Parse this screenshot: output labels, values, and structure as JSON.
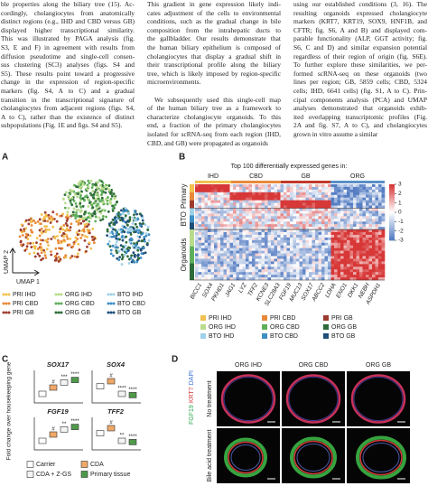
{
  "body_text": {
    "columns": [
      {
        "paragraphs": [
          [
            "ble properties along the biliary tree (15). Ac-",
            "cordingly, cholangiocytes from anatomically",
            "distinct regions (e.g., IHD and CBD versus GB)",
            "displayed higher transcriptional similarity.",
            "This was illustrated by PAGA analysis (fig.",
            "S3, E and F) in agreement with results from",
            "diffusion pseudotime and single-cell consen-",
            "sus clustering (SC3) analyses (figs. S4 and",
            "S5). These results point toward a progressive",
            "change in the expression of region-specific",
            "markers (fig. S4, A to C) and a gradual",
            "transition in the transcriptional signature of",
            "cholangiocytes from adjacent regions (figs. S4,",
            "A to C), rather than the existence of distinct",
            "subpopulations (Fig. 1E and figs. S4 and S5)."
          ]
        ]
      },
      {
        "paragraphs": [
          [
            "This gradient in gene expression likely indi-",
            "cates adjustment of the cells to environmental",
            "conditions, such as the gradual change in bile",
            "composition from the intrahepatic ducts to",
            "the gallbladder. Our results demonstrate that",
            "the human biliary epithelium is composed of",
            "cholangiocytes that display a gradual shift in",
            "their transcriptional profile along the biliary",
            "tree, which is likely imposed by region-specific",
            "microenvironments."
          ],
          [
            "We subsequently used this single-cell map",
            "of the human biliary tree as a framework to",
            "characterize cholangiocyte organoids. To this",
            "end, a fraction of the primary cholangiocytes",
            "isolated for scRNA-seq from each region (IHD,",
            "CBD, and GB) were propagated as organoids"
          ]
        ]
      },
      {
        "paragraphs": [
          [
            "using our established conditions (3, 16). The",
            "resulting organoids expressed cholangiocyte",
            "markers (KRT7, KRT19, SOX9, HNF1B, and",
            "CFTR; fig. S6, A and B) and displayed com-",
            "parable functionality (ALP, GGT activity; fig.",
            "S6, C and D) and similar expansion potential",
            "regardless of their region of origin (fig. S6E).",
            "To further explore these similarities, we per-",
            "formed scRNA-seq on these organoids (two",
            "lines per region; GB, 5859 cells; CBD, 5324",
            "cells; IHD, 6641 cells) (fig. S1, A to C). Prin-",
            "cipal components analysis (PCA) and UMAP",
            "analyses demonstrated that organoids exhib-",
            "ited overlapping transcriptomic profiles (Fig.",
            "2A and fig. S7, A to C), and cholangiocytes",
            "grown in vitro assume a similar"
          ]
        ]
      }
    ]
  },
  "figure": {
    "samples": [
      {
        "name": "PRI IHD",
        "color": "#f2c14e"
      },
      {
        "name": "PRI CBD",
        "color": "#e8893a"
      },
      {
        "name": "PRI GB",
        "color": "#9c3b2e"
      },
      {
        "name": "ORG IHD",
        "color": "#b9dc8c"
      },
      {
        "name": "ORG CBD",
        "color": "#5fae5a"
      },
      {
        "name": "ORG GB",
        "color": "#2e6b3a"
      },
      {
        "name": "BTO IHD",
        "color": "#9fd1e8"
      },
      {
        "name": "BTO CBD",
        "color": "#3e8fc4"
      },
      {
        "name": "BTO GB",
        "color": "#1f4e79"
      }
    ],
    "panel_a": {
      "label": "A",
      "x_axis": "UMAP 1",
      "y_axis": "UMAP 2"
    },
    "panel_b": {
      "label": "B",
      "header": "Top 100 differentially expressed genes in:",
      "groups": [
        {
          "name": "IHD",
          "color": "#f2c14e"
        },
        {
          "name": "CBD",
          "color": "#e8893a"
        },
        {
          "name": "GB",
          "color": "#c0392b"
        },
        {
          "name": "ORG",
          "color": "#5b8fc9"
        }
      ],
      "rows": [
        "Primary",
        "BTO",
        "Organoids"
      ],
      "colorbar_ticks": [
        3,
        2,
        1,
        0,
        -1,
        -2,
        -3
      ],
      "genes": [
        "BICC1",
        "SOX4",
        "PKHD1",
        "JAG1",
        "LYZ",
        "TFF2",
        "KCNE3",
        "SLC28A3",
        "FGF19",
        "MUC13",
        "SOX17",
        "ABCC2",
        "LDHA",
        "ENO1",
        "DKK1",
        "NEBH",
        "ASPDH1"
      ]
    },
    "panel_c": {
      "label": "C",
      "y_axis": "Fold change over housekeeping gene",
      "plots": [
        {
          "title": "SOX17",
          "annotations": [
            "#",
            "***",
            "****"
          ]
        },
        {
          "title": "SOX4",
          "annotations": [
            "#",
            "****",
            "****"
          ]
        },
        {
          "title": "FGF19",
          "annotations": [
            "#",
            "**",
            "****"
          ]
        },
        {
          "title": "TFF2",
          "annotations": [
            "#",
            "**",
            "****"
          ]
        }
      ],
      "legend": [
        {
          "name": "Carrier",
          "color": "#ffffff"
        },
        {
          "name": "CDA",
          "color": "#f0a868"
        },
        {
          "name": "CDA + Z-GS",
          "color": "#f4f4f4"
        },
        {
          "name": "Primary tissue",
          "color": "#4f9a4a"
        }
      ]
    },
    "panel_d": {
      "label": "D",
      "columns": [
        "ORG IHD",
        "ORG CBD",
        "ORG GB"
      ],
      "rows": [
        "No treatment",
        "Bile acid treatment"
      ],
      "stain": [
        {
          "text": "FGF19",
          "color": "#2fa84f"
        },
        {
          "text": "KRT7",
          "color": "#d23a3a"
        },
        {
          "text": "DAPI",
          "color": "#3a6fd2"
        }
      ]
    }
  }
}
